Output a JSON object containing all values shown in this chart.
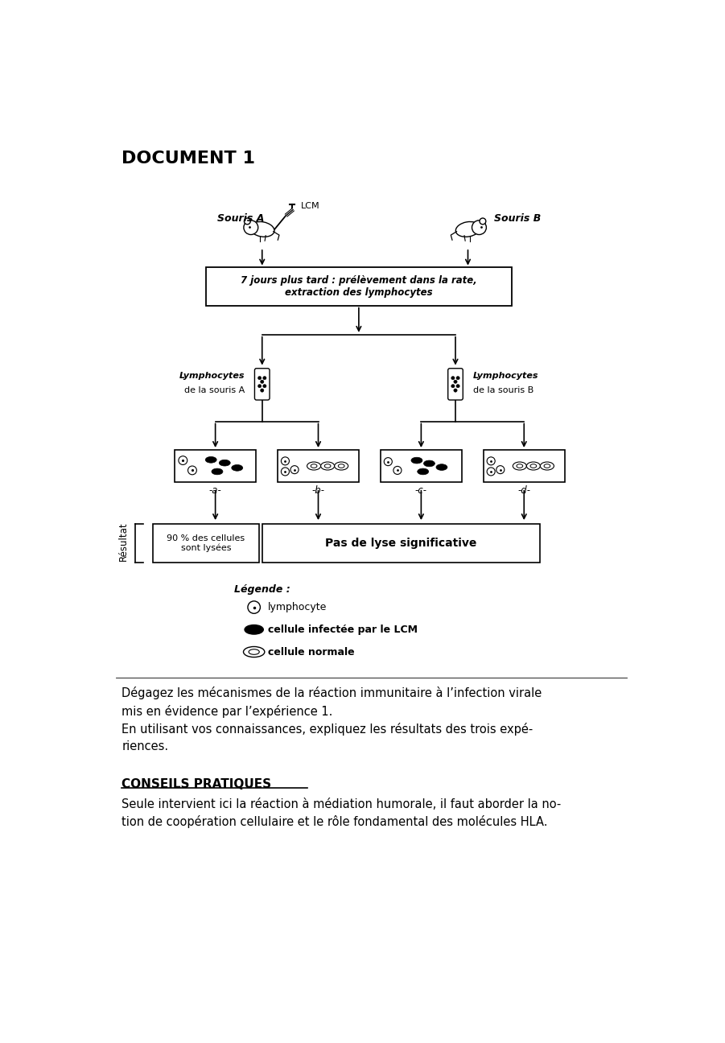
{
  "title": "DOCUMENT 1",
  "bg_color": "#ffffff",
  "text_color": "#000000",
  "box_text_7jours": "7 jours plus tard : prélèvement dans la rate,\nextraction des lymphocytes",
  "label_souris_a": "Souris A",
  "label_souris_b": "Souris B",
  "label_lcm": "LCM",
  "label_lympho_a1": "Lymphocytes",
  "label_lympho_a2": "de la souris A",
  "label_lympho_b1": "Lymphocytes",
  "label_lympho_b2": "de la souris B",
  "label_a": "-a-",
  "label_b": "-b-",
  "label_c": "-c-",
  "label_d": "-d-",
  "resultat_label": "Résultat",
  "result_a": "90 % des cellules\nsont lysées",
  "result_bcd": "Pas de lyse significative",
  "legende_title": "Légende :",
  "legende_1": "lymphocyte",
  "legende_2": "cellule infectée par le LCM",
  "legende_3": "cellule normale",
  "question_text": "Dégagez les mécanismes de la réaction immunitaire à l’infection virale\nmis en évidence par l’expérience 1.\nEn utilisant vos connaissances, expliquez les résultats des trois expé-\nriences.",
  "conseils_title": "CONSEILS PRATIQUES",
  "conseils_text": "Seule intervient ici la réaction à médiation humorale, il faut aborder la no-\ntion de coopération cellulaire et le rôle fondamental des molécules HLA."
}
